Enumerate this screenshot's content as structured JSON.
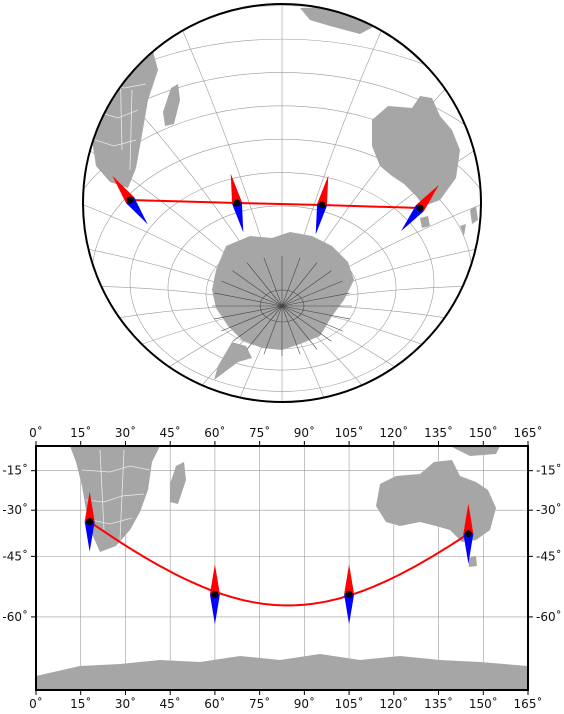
{
  "colors": {
    "land": "#a6a6a6",
    "ocean": "#ffffff",
    "graticule": "#9a9a9a",
    "border": "#e8e8e8",
    "track": "#ff0000",
    "arrow_north": "#ff0000",
    "arrow_south": "#0000ff",
    "frame": "#000000"
  },
  "top_map": {
    "projection": "orthographic",
    "points": [
      {
        "lon": 18,
        "lat": -34
      },
      {
        "lon": 60,
        "lat": -55
      },
      {
        "lon": 105,
        "lat": -55
      },
      {
        "lon": 145,
        "lat": -38
      }
    ]
  },
  "bottom_map": {
    "projection": "mercator",
    "x_range": [
      0,
      165
    ],
    "y_range": [
      -72,
      -5
    ],
    "x_tick_labels": [
      "0˚",
      "15˚",
      "30˚",
      "45˚",
      "60˚",
      "75˚",
      "90˚",
      "105˚",
      "120˚",
      "135˚",
      "150˚",
      "165˚"
    ],
    "y_tick_labels": [
      "-15˚",
      "-30˚",
      "-45˚",
      "-60˚"
    ],
    "points": [
      {
        "lon": 18,
        "lat": -34
      },
      {
        "lon": 60,
        "lat": -55
      },
      {
        "lon": 105,
        "lat": -55
      },
      {
        "lon": 145,
        "lat": -38
      }
    ],
    "track_min_lat": -57.5
  }
}
